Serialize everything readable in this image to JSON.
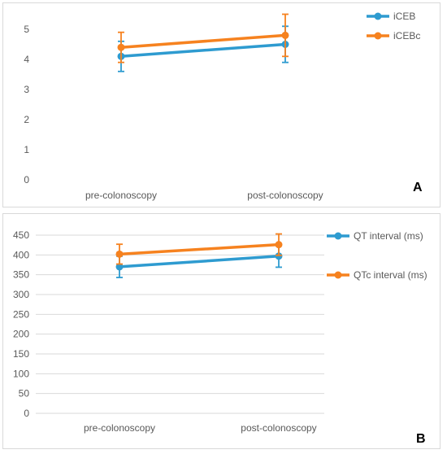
{
  "chart_data": [
    {
      "type": "line",
      "panel_label": "A",
      "categories": [
        "pre-colonoscopy",
        "post-colonoscopy"
      ],
      "series": [
        {
          "name": "iCEB",
          "color": "#2e9bd0",
          "values": [
            4.1,
            4.5
          ],
          "error": [
            0.5,
            0.6
          ]
        },
        {
          "name": "iCEBc",
          "color": "#f6821f",
          "values": [
            4.4,
            4.8
          ],
          "error": [
            0.5,
            0.7
          ]
        }
      ],
      "ylim": [
        0,
        5
      ],
      "yticks": [
        0,
        1,
        2,
        3,
        4,
        5
      ],
      "grid": false,
      "legend": "top-right"
    },
    {
      "type": "line",
      "panel_label": "B",
      "categories": [
        "pre-colonoscopy",
        "post-colonoscopy"
      ],
      "series": [
        {
          "name": "QT interval (ms)",
          "color": "#2e9bd0",
          "values": [
            370,
            397
          ],
          "error": [
            27,
            28
          ]
        },
        {
          "name": "QTc interval (ms)",
          "color": "#f6821f",
          "values": [
            402,
            426
          ],
          "error": [
            25,
            27
          ]
        }
      ],
      "ylim": [
        0,
        450
      ],
      "yticks": [
        0,
        50,
        100,
        150,
        200,
        250,
        300,
        350,
        400,
        450
      ],
      "grid": true,
      "legend": "right"
    }
  ]
}
